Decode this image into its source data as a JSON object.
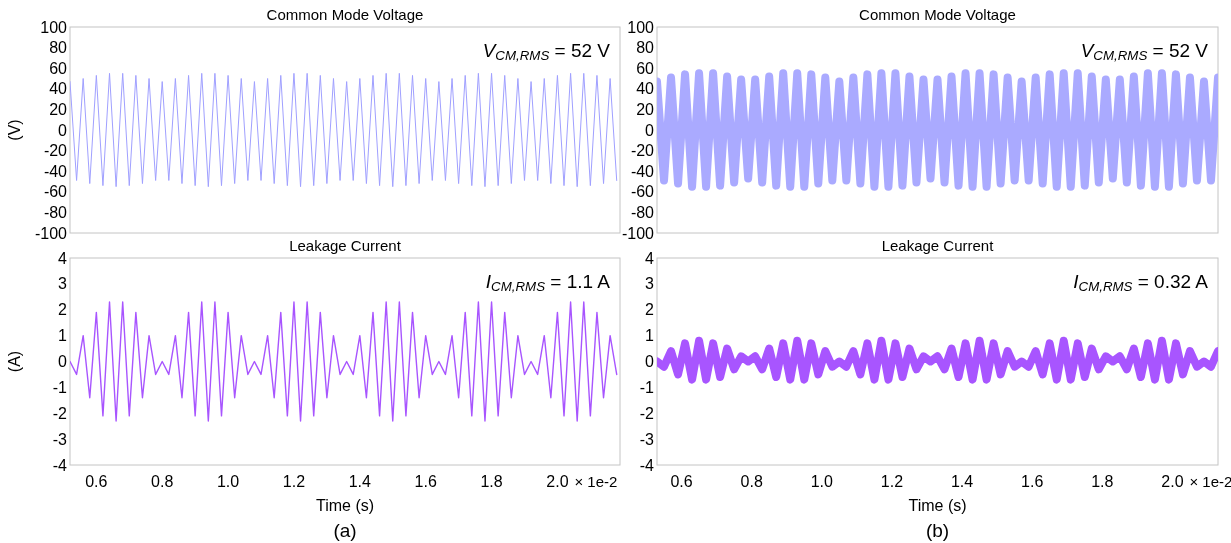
{
  "chart_data": [
    {
      "type": "line",
      "title": "Common Mode Voltage",
      "ylabel": "(V)",
      "annotations": [
        "V$_{CM,RMS}$ = 52 V"
      ],
      "xlim": [
        0.52,
        2.19
      ],
      "ylim": [
        -100,
        100
      ],
      "yticks": [
        -100,
        -80,
        -60,
        -40,
        -20,
        0,
        20,
        40,
        60,
        80,
        100
      ],
      "tick_labels": "y",
      "x": [
        0.52,
        0.54,
        0.56,
        0.58,
        0.6,
        0.62,
        0.64,
        0.66,
        0.68,
        0.7,
        0.72,
        0.74,
        0.76,
        0.78,
        0.8,
        0.82,
        0.84,
        0.86,
        0.88,
        0.9,
        0.92,
        0.94,
        0.96,
        0.98,
        1.0,
        1.02,
        1.04,
        1.06,
        1.08,
        1.1,
        1.12,
        1.14,
        1.16,
        1.18,
        1.2,
        1.22,
        1.24,
        1.26,
        1.28,
        1.3,
        1.32,
        1.34,
        1.36,
        1.38,
        1.4,
        1.42,
        1.44,
        1.46,
        1.48,
        1.5,
        1.52,
        1.54,
        1.56,
        1.58,
        1.6,
        1.62,
        1.64,
        1.66,
        1.68,
        1.7,
        1.72,
        1.74,
        1.76,
        1.78,
        1.8,
        1.82,
        1.84,
        1.86,
        1.88,
        1.9,
        1.92,
        1.94,
        1.96,
        1.98,
        2.0,
        2.02,
        2.04,
        2.06,
        2.08,
        2.1,
        2.12,
        2.14,
        2.16,
        2.18
      ],
      "series": [
        {
          "color": "#a0a0ff",
          "values": [
            47,
            -49,
            50,
            -52,
            53,
            -54,
            55,
            -55,
            55,
            -54,
            53,
            -52,
            50,
            -49,
            47,
            -49,
            50,
            -52,
            53,
            -54,
            55,
            -55,
            55,
            -54,
            53,
            -52,
            50,
            -49,
            47,
            -49,
            50,
            -52,
            53,
            -54,
            55,
            -55,
            55,
            -54,
            53,
            -52,
            50,
            -49,
            47,
            -49,
            50,
            -52,
            53,
            -54,
            55,
            -55,
            55,
            -54,
            53,
            -52,
            50,
            -49,
            47,
            -49,
            50,
            -52,
            53,
            -54,
            55,
            -55,
            55,
            -54,
            53,
            -52,
            50,
            -49,
            47,
            -49,
            50,
            -52,
            53,
            -54,
            55,
            -55,
            55,
            -54,
            53,
            -52,
            50,
            -49
          ]
        }
      ]
    },
    {
      "type": "line",
      "title": "Common Mode Voltage",
      "annotations": [
        "V$_{CM,RMS}$ = 52 V"
      ],
      "xlim": [
        0.53,
        2.13
      ],
      "ylim": [
        -100,
        100
      ],
      "yticks": [
        -100,
        -80,
        -60,
        -40,
        -20,
        0,
        20,
        40,
        60,
        80,
        100
      ],
      "tick_labels": "y",
      "x": [
        0.53,
        0.55,
        0.57,
        0.59,
        0.61,
        0.63,
        0.65,
        0.67,
        0.69,
        0.71,
        0.73,
        0.75,
        0.77,
        0.79,
        0.81,
        0.83,
        0.85,
        0.87,
        0.89,
        0.91,
        0.93,
        0.95,
        0.97,
        0.99,
        1.01,
        1.03,
        1.05,
        1.07,
        1.09,
        1.11,
        1.13,
        1.15,
        1.17,
        1.19,
        1.21,
        1.23,
        1.25,
        1.27,
        1.29,
        1.31,
        1.33,
        1.35,
        1.37,
        1.39,
        1.41,
        1.43,
        1.45,
        1.47,
        1.49,
        1.51,
        1.53,
        1.55,
        1.57,
        1.59,
        1.61,
        1.63,
        1.65,
        1.67,
        1.69,
        1.71,
        1.73,
        1.75,
        1.77,
        1.79,
        1.81,
        1.83,
        1.85,
        1.87,
        1.89,
        1.91,
        1.93,
        1.95,
        1.97,
        1.99,
        2.01,
        2.03,
        2.05,
        2.07,
        2.09,
        2.11,
        2.13
      ],
      "series": [
        {
          "color": "#aaaaff",
          "values": [
            47,
            -49,
            51,
            -52,
            54,
            -55,
            55,
            -55,
            55,
            -54,
            52,
            -51,
            49,
            -47,
            49,
            -51,
            52,
            -54,
            55,
            -55,
            55,
            -55,
            54,
            -52,
            51,
            -49,
            47,
            -49,
            51,
            -52,
            54,
            -55,
            55,
            -55,
            55,
            -54,
            52,
            -51,
            49,
            -47,
            49,
            -51,
            52,
            -54,
            55,
            -55,
            55,
            -55,
            54,
            -52,
            51,
            -49,
            47,
            -49,
            51,
            -52,
            54,
            -55,
            55,
            -55,
            55,
            -54,
            52,
            -51,
            49,
            -47,
            49,
            -51,
            52,
            -54,
            55,
            -55,
            55,
            -55,
            54,
            -52,
            51,
            -49,
            47,
            -49,
            51
          ]
        }
      ]
    },
    {
      "type": "line",
      "title": "Leakage Current",
      "xlabel": "Time (s)",
      "ylabel": "(A)",
      "annotations": [
        "I$_{CM,RMS}$ = 1.1 A",
        "× 1e-2",
        "(a)"
      ],
      "xlim": [
        0.52,
        2.19
      ],
      "xticks": [
        {
          "value": 0.6,
          "label": "0.6"
        },
        {
          "value": 0.8,
          "label": "0.8"
        },
        {
          "value": 1.0,
          "label": "1.0"
        },
        {
          "value": 1.2,
          "label": "1.2"
        },
        {
          "value": 1.4,
          "label": "1.4"
        },
        {
          "value": 1.6,
          "label": "1.6"
        },
        {
          "value": 1.8,
          "label": "1.8"
        },
        {
          "value": 2.0,
          "label": "2.0"
        }
      ],
      "ylim": [
        -4,
        4
      ],
      "yticks": [
        -4,
        -3,
        -2,
        -1,
        0,
        1,
        2,
        3,
        4
      ],
      "x": [
        0.52,
        0.54,
        0.56,
        0.58,
        0.6,
        0.62,
        0.64,
        0.66,
        0.68,
        0.7,
        0.72,
        0.74,
        0.76,
        0.78,
        0.8,
        0.82,
        0.84,
        0.86,
        0.88,
        0.9,
        0.92,
        0.94,
        0.96,
        0.98,
        1.0,
        1.02,
        1.04,
        1.06,
        1.08,
        1.1,
        1.12,
        1.14,
        1.16,
        1.18,
        1.2,
        1.22,
        1.24,
        1.26,
        1.28,
        1.3,
        1.32,
        1.34,
        1.36,
        1.38,
        1.4,
        1.42,
        1.44,
        1.46,
        1.48,
        1.5,
        1.52,
        1.54,
        1.56,
        1.58,
        1.6,
        1.62,
        1.64,
        1.66,
        1.68,
        1.7,
        1.72,
        1.74,
        1.76,
        1.78,
        1.8,
        1.82,
        1.84,
        1.86,
        1.88,
        1.9,
        1.92,
        1.94,
        1.96,
        1.98,
        2.0,
        2.02,
        2.04,
        2.06,
        2.08,
        2.1,
        2.12,
        2.14,
        2.16,
        2.18
      ],
      "series": [
        {
          "color": "#a855ff",
          "values": [
            0,
            -0.5,
            1.0,
            -1.4,
            1.9,
            -2.1,
            2.3,
            -2.3,
            2.3,
            -2.1,
            1.9,
            -1.4,
            1.0,
            -0.5,
            0,
            -0.5,
            1.0,
            -1.4,
            1.9,
            -2.1,
            2.3,
            -2.3,
            2.3,
            -2.1,
            1.9,
            -1.4,
            1.0,
            -0.5,
            0,
            -0.5,
            1.0,
            -1.4,
            1.9,
            -2.1,
            2.3,
            -2.3,
            2.3,
            -2.1,
            1.9,
            -1.4,
            1.0,
            -0.5,
            0,
            -0.5,
            1.0,
            -1.4,
            1.9,
            -2.1,
            2.3,
            -2.3,
            2.3,
            -2.1,
            1.9,
            -1.4,
            1.0,
            -0.5,
            0,
            -0.5,
            1.0,
            -1.4,
            1.9,
            -2.1,
            2.3,
            -2.3,
            2.3,
            -2.1,
            1.9,
            -1.4,
            1.0,
            -0.5,
            0,
            -0.5,
            1.0,
            -1.4,
            1.9,
            -2.1,
            2.3,
            -2.3,
            2.3,
            -2.1,
            1.9,
            -1.4,
            1.0,
            -0.5
          ]
        }
      ]
    },
    {
      "type": "line",
      "title": "Leakage Current",
      "xlabel": "Time (s)",
      "annotations": [
        "I$_{CM,RMS}$ = 0.32 A",
        "× 1e-2",
        "(b)"
      ],
      "xlim": [
        0.53,
        2.13
      ],
      "xticks": [
        {
          "value": 0.6,
          "label": "0.6"
        },
        {
          "value": 0.8,
          "label": "0.8"
        },
        {
          "value": 1.0,
          "label": "1.0"
        },
        {
          "value": 1.2,
          "label": "1.2"
        },
        {
          "value": 1.4,
          "label": "1.4"
        },
        {
          "value": 1.6,
          "label": "1.6"
        },
        {
          "value": 1.8,
          "label": "1.8"
        },
        {
          "value": 2.0,
          "label": "2.0"
        }
      ],
      "ylim": [
        -4,
        4
      ],
      "yticks": [
        -4,
        -3,
        -2,
        -1,
        0,
        1,
        2,
        3,
        4
      ],
      "x": [
        0.53,
        0.55,
        0.57,
        0.59,
        0.61,
        0.63,
        0.65,
        0.67,
        0.69,
        0.71,
        0.73,
        0.75,
        0.77,
        0.79,
        0.81,
        0.83,
        0.85,
        0.87,
        0.89,
        0.91,
        0.93,
        0.95,
        0.97,
        0.99,
        1.01,
        1.03,
        1.05,
        1.07,
        1.09,
        1.11,
        1.13,
        1.15,
        1.17,
        1.19,
        1.21,
        1.23,
        1.25,
        1.27,
        1.29,
        1.31,
        1.33,
        1.35,
        1.37,
        1.39,
        1.41,
        1.43,
        1.45,
        1.47,
        1.49,
        1.51,
        1.53,
        1.55,
        1.57,
        1.59,
        1.61,
        1.63,
        1.65,
        1.67,
        1.69,
        1.71,
        1.73,
        1.75,
        1.77,
        1.79,
        1.81,
        1.83,
        1.85,
        1.87,
        1.89,
        1.91,
        1.93,
        1.95,
        1.97,
        1.99,
        2.01,
        2.03,
        2.05,
        2.07,
        2.09,
        2.11,
        2.13
      ],
      "series": [
        {
          "color": "#a855ff",
          "values": [
            0,
            -0.2,
            0.4,
            -0.5,
            0.7,
            -0.7,
            0.8,
            -0.7,
            0.7,
            -0.6,
            0.5,
            -0.3,
            0.2,
            0,
            0.2,
            -0.3,
            0.5,
            -0.6,
            0.7,
            -0.7,
            0.8,
            -0.7,
            0.7,
            -0.5,
            0.4,
            -0.2,
            0,
            -0.2,
            0.4,
            -0.5,
            0.7,
            -0.7,
            0.8,
            -0.7,
            0.7,
            -0.6,
            0.5,
            -0.3,
            0.2,
            0,
            0.2,
            -0.3,
            0.5,
            -0.6,
            0.7,
            -0.7,
            0.8,
            -0.7,
            0.7,
            -0.5,
            0.4,
            -0.2,
            0,
            -0.2,
            0.4,
            -0.5,
            0.7,
            -0.7,
            0.8,
            -0.7,
            0.7,
            -0.6,
            0.5,
            -0.3,
            0.2,
            0,
            0.2,
            -0.3,
            0.5,
            -0.6,
            0.7,
            -0.7,
            0.8,
            -0.7,
            0.7,
            -0.5,
            0.4,
            -0.2,
            0,
            -0.2,
            0.4
          ]
        }
      ]
    }
  ]
}
